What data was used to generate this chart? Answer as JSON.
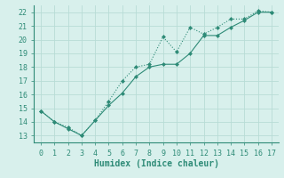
{
  "xlabel": "Humidex (Indice chaleur)",
  "xlim": [
    -0.5,
    17.5
  ],
  "ylim": [
    12.5,
    22.5
  ],
  "yticks": [
    13,
    14,
    15,
    16,
    17,
    18,
    19,
    20,
    21,
    22
  ],
  "xticks": [
    0,
    1,
    2,
    3,
    4,
    5,
    6,
    7,
    8,
    9,
    10,
    11,
    12,
    13,
    14,
    15,
    16,
    17
  ],
  "line1_x": [
    0,
    1,
    2,
    3,
    4,
    5,
    6,
    7,
    8,
    9,
    10,
    11,
    12,
    13,
    14,
    15,
    16,
    17
  ],
  "line1_y": [
    14.8,
    14.0,
    13.6,
    13.0,
    14.1,
    15.5,
    17.0,
    18.0,
    18.2,
    20.2,
    19.1,
    20.9,
    20.4,
    20.9,
    21.5,
    21.5,
    22.1,
    22.0
  ],
  "line2_x": [
    0,
    1,
    2,
    3,
    4,
    5,
    6,
    7,
    8,
    9,
    10,
    11,
    12,
    13,
    14,
    15,
    16,
    17
  ],
  "line2_y": [
    14.8,
    14.0,
    13.5,
    13.0,
    14.1,
    15.2,
    16.1,
    17.3,
    18.0,
    18.2,
    18.2,
    19.0,
    20.3,
    20.3,
    20.9,
    21.4,
    22.0,
    22.0
  ],
  "line_color": "#2e8b77",
  "bg_color": "#d8f0ec",
  "grid_color": "#b8dcd6",
  "tick_fontsize": 6,
  "xlabel_fontsize": 7
}
